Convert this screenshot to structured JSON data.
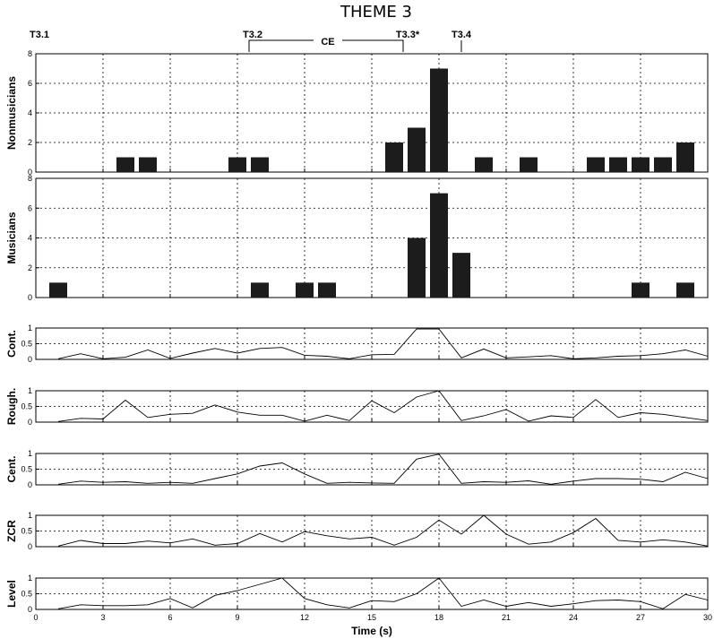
{
  "title": "THEME 3",
  "markers": {
    "T3_1": "T3.1",
    "T3_2": "T3.2",
    "CE": "CE",
    "T3_3": "T3.3*",
    "T3_4": "T3.4"
  },
  "chart_data": [
    {
      "type": "bar",
      "ylabel": "Nonmusicians",
      "x": [
        4,
        5,
        9,
        10,
        16,
        17,
        18,
        20,
        22,
        25,
        26,
        27,
        28,
        29
      ],
      "values": [
        1,
        1,
        1,
        1,
        2,
        3,
        7,
        1,
        1,
        1,
        1,
        1,
        1,
        2
      ],
      "xlim": [
        0,
        30
      ],
      "ylim": [
        0,
        8
      ],
      "yticks": [
        "0",
        "2",
        "4",
        "6",
        "8"
      ],
      "grid": true
    },
    {
      "type": "bar",
      "ylabel": "Musicians",
      "x": [
        1,
        10,
        12,
        13,
        17,
        18,
        19,
        27,
        29
      ],
      "values": [
        1,
        1,
        1,
        1,
        4,
        7,
        3,
        1,
        1
      ],
      "xlim": [
        0,
        30
      ],
      "ylim": [
        0,
        8
      ],
      "yticks": [
        "0",
        "2",
        "4",
        "6",
        "8"
      ],
      "grid": true
    },
    {
      "type": "line",
      "ylabel": "Cont.",
      "x": [
        1,
        2,
        3,
        4,
        5,
        6,
        7,
        8,
        9,
        10,
        11,
        12,
        13,
        14,
        15,
        16,
        17,
        18,
        19,
        20,
        21,
        22,
        23,
        24,
        25,
        26,
        27,
        28,
        29,
        30
      ],
      "values": [
        0.02,
        0.18,
        0.02,
        0.07,
        0.3,
        0.03,
        0.2,
        0.35,
        0.2,
        0.35,
        0.38,
        0.13,
        0.1,
        0.02,
        0.15,
        0.16,
        0.97,
        0.97,
        0.05,
        0.33,
        0.05,
        0.08,
        0.12,
        0.02,
        0.05,
        0.1,
        0.12,
        0.18,
        0.3,
        0.1
      ],
      "xlim": [
        0,
        30
      ],
      "ylim": [
        0,
        1
      ],
      "yticks": [
        "0",
        "0.5",
        "1"
      ],
      "grid": true
    },
    {
      "type": "line",
      "ylabel": "Rough.",
      "x": [
        1,
        2,
        3,
        4,
        5,
        6,
        7,
        8,
        9,
        10,
        11,
        12,
        13,
        14,
        15,
        16,
        17,
        18,
        19,
        20,
        21,
        22,
        23,
        24,
        25,
        26,
        27,
        28,
        29,
        30
      ],
      "values": [
        0.02,
        0.12,
        0.1,
        0.7,
        0.15,
        0.25,
        0.28,
        0.55,
        0.32,
        0.22,
        0.22,
        0.03,
        0.22,
        0.05,
        0.68,
        0.3,
        0.8,
        1.0,
        0.05,
        0.2,
        0.4,
        0.03,
        0.2,
        0.15,
        0.72,
        0.15,
        0.3,
        0.25,
        0.15,
        0.05
      ],
      "xlim": [
        0,
        30
      ],
      "ylim": [
        0,
        1
      ],
      "yticks": [
        "0",
        "0.5",
        "1"
      ],
      "grid": true
    },
    {
      "type": "line",
      "ylabel": "Cent.",
      "x": [
        1,
        2,
        3,
        4,
        5,
        6,
        7,
        8,
        9,
        10,
        11,
        12,
        13,
        14,
        15,
        16,
        17,
        18,
        19,
        20,
        21,
        22,
        23,
        24,
        25,
        26,
        27,
        28,
        29,
        30
      ],
      "values": [
        0.02,
        0.12,
        0.08,
        0.1,
        0.05,
        0.08,
        0.05,
        0.2,
        0.35,
        0.6,
        0.7,
        0.35,
        0.05,
        0.08,
        0.06,
        0.05,
        0.82,
        0.98,
        0.05,
        0.1,
        0.08,
        0.13,
        0.02,
        0.12,
        0.2,
        0.2,
        0.18,
        0.1,
        0.4,
        0.2
      ],
      "xlim": [
        0,
        30
      ],
      "ylim": [
        0,
        1
      ],
      "yticks": [
        "0",
        "0.5",
        "1"
      ],
      "grid": true
    },
    {
      "type": "line",
      "ylabel": "ZCR",
      "x": [
        1,
        2,
        3,
        4,
        5,
        6,
        7,
        8,
        9,
        10,
        11,
        12,
        13,
        14,
        15,
        16,
        17,
        18,
        19,
        20,
        21,
        22,
        23,
        24,
        25,
        26,
        27,
        28,
        29,
        30
      ],
      "values": [
        0.02,
        0.2,
        0.1,
        0.1,
        0.18,
        0.12,
        0.25,
        0.05,
        0.1,
        0.42,
        0.15,
        0.48,
        0.35,
        0.25,
        0.3,
        0.05,
        0.3,
        0.85,
        0.4,
        1.0,
        0.4,
        0.08,
        0.15,
        0.45,
        0.9,
        0.2,
        0.15,
        0.22,
        0.15,
        0.02
      ],
      "xlim": [
        0,
        30
      ],
      "ylim": [
        0,
        1
      ],
      "yticks": [
        "0",
        "0.5",
        "1"
      ],
      "grid": true
    },
    {
      "type": "line",
      "ylabel": "Level",
      "x": [
        1,
        2,
        3,
        4,
        5,
        6,
        7,
        8,
        9,
        10,
        11,
        12,
        13,
        14,
        15,
        16,
        17,
        18,
        19,
        20,
        21,
        22,
        23,
        24,
        25,
        26,
        27,
        28,
        29,
        30
      ],
      "values": [
        0.02,
        0.15,
        0.12,
        0.12,
        0.15,
        0.35,
        0.05,
        0.45,
        0.6,
        0.8,
        1.0,
        0.35,
        0.15,
        0.05,
        0.28,
        0.25,
        0.5,
        1.0,
        0.1,
        0.3,
        0.1,
        0.22,
        0.1,
        0.18,
        0.28,
        0.3,
        0.25,
        0.02,
        0.48,
        0.3
      ],
      "xlim": [
        0,
        30
      ],
      "ylim": [
        0,
        1
      ],
      "yticks": [
        "0",
        "0.5",
        "1"
      ],
      "xlabel": "Time (s)",
      "xticks": [
        "0",
        "3",
        "6",
        "9",
        "12",
        "15",
        "18",
        "21",
        "24",
        "27",
        "30"
      ],
      "grid": true
    }
  ]
}
